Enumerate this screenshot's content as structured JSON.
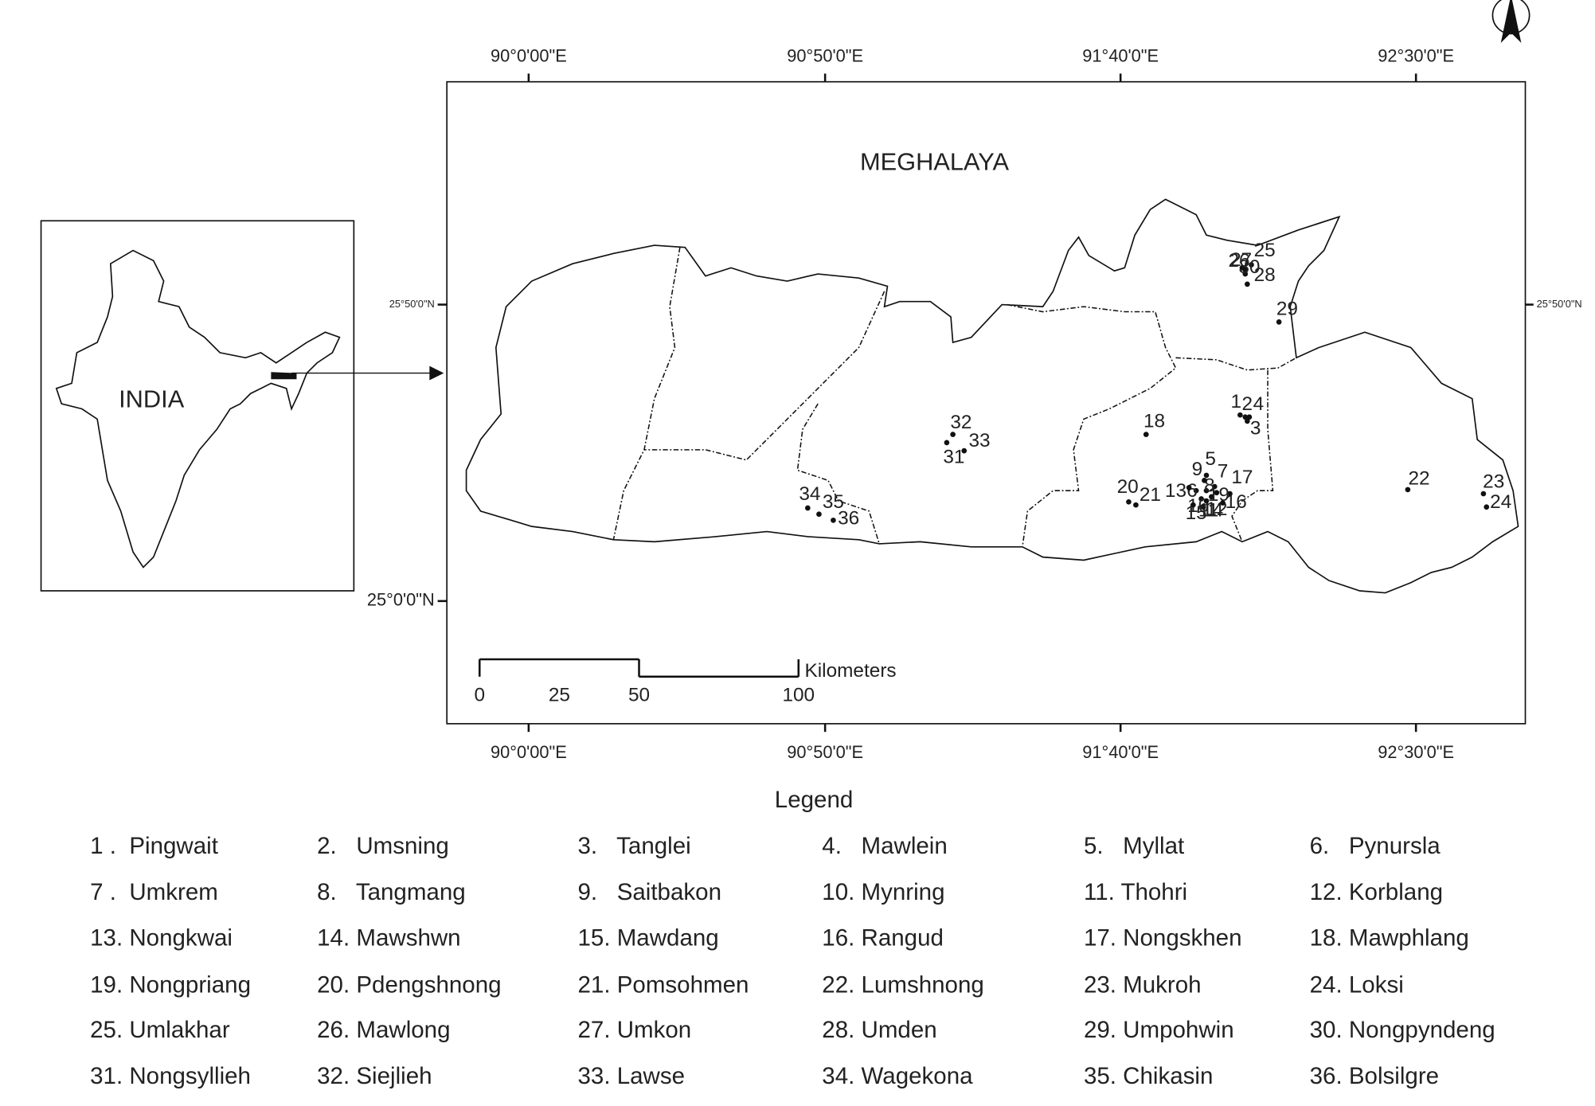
{
  "title": "MEGHALAYA",
  "inset_label": "INDIA",
  "longitude_labels_top": [
    "90°0'00\"E",
    "90°50'0\"E",
    "91°40'0\"E",
    "92°30'0\"E"
  ],
  "longitude_labels_bottom": [
    "90°0'00\"E",
    "90°50'0\"E",
    "91°40'0\"E",
    "92°30'0\"E"
  ],
  "latitude_labels_left": [
    "25°50'0\"N",
    "25°0'0\"N"
  ],
  "latitude_labels_right": [
    "25°50'0\"N"
  ],
  "scale_bar": {
    "unit": "Kilometers",
    "ticks": [
      0,
      25,
      50,
      100
    ]
  },
  "points": [
    {
      "label": "1"
    },
    {
      "label": "2"
    },
    {
      "label": "3"
    },
    {
      "label": "4"
    },
    {
      "label": "5"
    },
    {
      "label": "6"
    },
    {
      "label": "7"
    },
    {
      "label": "8"
    },
    {
      "label": "9"
    },
    {
      "label": "10"
    },
    {
      "label": "11"
    },
    {
      "label": "12"
    },
    {
      "label": "13"
    },
    {
      "label": "14"
    },
    {
      "label": "15"
    },
    {
      "label": "16"
    },
    {
      "label": "17"
    },
    {
      "label": "18"
    },
    {
      "label": "19"
    },
    {
      "label": "20"
    },
    {
      "label": "21"
    },
    {
      "label": "22"
    },
    {
      "label": "23"
    },
    {
      "label": "24"
    },
    {
      "label": "25"
    },
    {
      "label": "26"
    },
    {
      "label": "27"
    },
    {
      "label": "28"
    },
    {
      "label": "29"
    },
    {
      "label": "30"
    },
    {
      "label": "31"
    },
    {
      "label": "32"
    },
    {
      "label": "33"
    },
    {
      "label": "34"
    },
    {
      "label": "35"
    },
    {
      "label": "36"
    }
  ],
  "legend": {
    "title": "Legend",
    "items": [
      "1 .  Pingwait",
      "2.   Umsning",
      "3.   Tanglei",
      "4.   Mawlein",
      "5.   Myllat",
      "6.   Pynursla",
      "7 .  Umkrem",
      "8.   Tangmang",
      "9.   Saitbakon",
      "10. Mynring",
      "11. Thohri",
      "12. Korblang",
      "13. Nongkwai",
      "14. Mawshwn",
      "15. Mawdang",
      "16. Rangud",
      "17. Nongskhen",
      "18. Mawphlang",
      "19. Nongpriang",
      "20. Pdengshnong",
      "21. Pomsohmen",
      "22. Lumshnong",
      "23. Mukroh",
      "24. Loksi",
      "25. Umlakhar",
      "26. Mawlong",
      "27. Umkon",
      "28. Umden",
      "29. Umpohwin",
      "30. Nongpyndeng",
      "31. Nongsyllieh",
      "32. Siejlieh",
      "33. Lawse",
      "34. Wagekona",
      "35. Chikasin",
      "36. Bolsilgre"
    ]
  }
}
